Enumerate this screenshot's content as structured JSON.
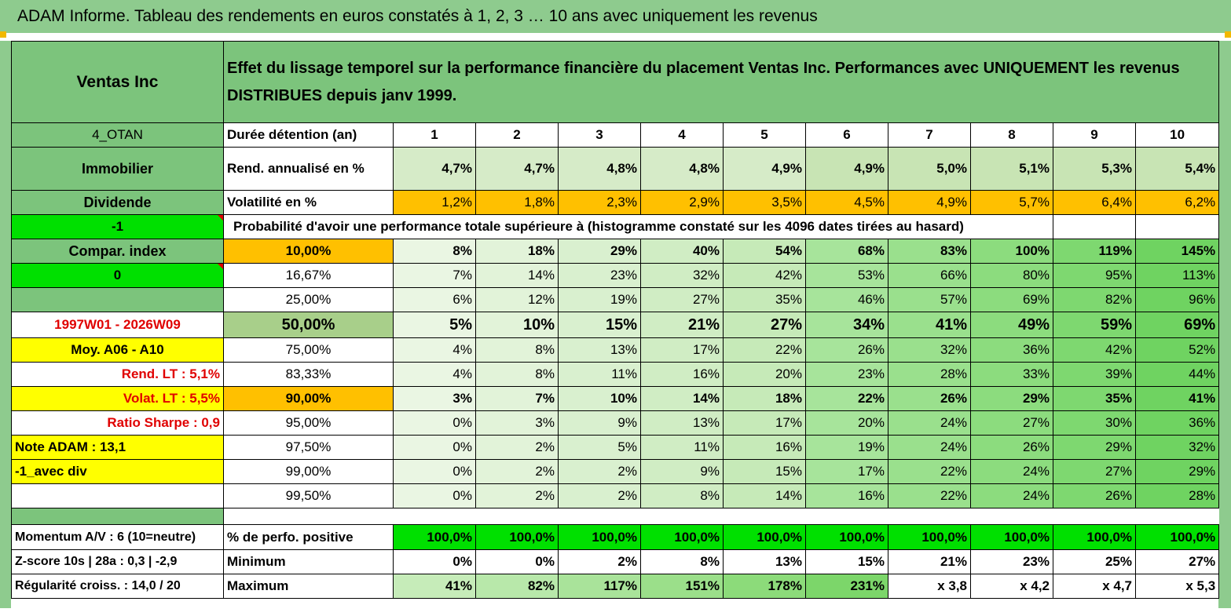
{
  "title": "ADAM Informe. Tableau des rendements en euros constatés à 1, 2, 3 … 10 ans avec uniquement les revenus",
  "header": {
    "company": "Ventas Inc",
    "description": "Effet du lissage temporel sur la performance financière du placement Ventas Inc. Performances avec UNIQUEMENT les revenus DISTRIBUES depuis janv 1999."
  },
  "left": {
    "code": "4_OTAN",
    "sector": "Immobilier",
    "type": "Dividende",
    "minus1": "-1",
    "compar": "Compar. index",
    "zero": "0",
    "period": "1997W01 - 2026W09",
    "moy": "Moy. A06 - A10",
    "rend_lt": "Rend. LT :   5,1%",
    "volat_lt": "Volat. LT :   5,5%",
    "sharpe": "Ratio Sharpe :    0,9",
    "note": "Note ADAM : 13,1",
    "avec_div": "-1_avec div"
  },
  "rows": {
    "duree_label": "Durée détention (an)",
    "years": [
      "1",
      "2",
      "3",
      "4",
      "5",
      "6",
      "7",
      "8",
      "9",
      "10"
    ],
    "rend_label": "Rend. annualisé en %",
    "rend": [
      "4,7%",
      "4,7%",
      "4,8%",
      "4,8%",
      "4,9%",
      "4,9%",
      "5,0%",
      "5,1%",
      "5,3%",
      "5,4%"
    ],
    "vol_label": "Volatilité en %",
    "vol": [
      "1,2%",
      "1,8%",
      "2,3%",
      "2,9%",
      "3,5%",
      "4,5%",
      "4,9%",
      "5,7%",
      "6,4%",
      "6,2%"
    ],
    "proba_label": "Probabilité d'avoir une performance totale supérieure à (histogramme constaté sur les 4096 dates tirées au hasard)"
  },
  "percentiles": [
    {
      "p": "10,00%",
      "v": [
        "8%",
        "18%",
        "29%",
        "40%",
        "54%",
        "68%",
        "83%",
        "100%",
        "119%",
        "145%"
      ]
    },
    {
      "p": "16,67%",
      "v": [
        "7%",
        "14%",
        "23%",
        "32%",
        "42%",
        "53%",
        "66%",
        "80%",
        "95%",
        "113%"
      ]
    },
    {
      "p": "25,00%",
      "v": [
        "6%",
        "12%",
        "19%",
        "27%",
        "35%",
        "46%",
        "57%",
        "69%",
        "82%",
        "96%"
      ]
    },
    {
      "p": "50,00%",
      "v": [
        "5%",
        "10%",
        "15%",
        "21%",
        "27%",
        "34%",
        "41%",
        "49%",
        "59%",
        "69%"
      ]
    },
    {
      "p": "75,00%",
      "v": [
        "4%",
        "8%",
        "13%",
        "17%",
        "22%",
        "26%",
        "32%",
        "36%",
        "42%",
        "52%"
      ]
    },
    {
      "p": "83,33%",
      "v": [
        "4%",
        "8%",
        "11%",
        "16%",
        "20%",
        "23%",
        "28%",
        "33%",
        "39%",
        "44%"
      ]
    },
    {
      "p": "90,00%",
      "v": [
        "3%",
        "7%",
        "10%",
        "14%",
        "18%",
        "22%",
        "26%",
        "29%",
        "35%",
        "41%"
      ]
    },
    {
      "p": "95,00%",
      "v": [
        "0%",
        "3%",
        "9%",
        "13%",
        "17%",
        "20%",
        "24%",
        "27%",
        "30%",
        "36%"
      ]
    },
    {
      "p": "97,50%",
      "v": [
        "0%",
        "2%",
        "5%",
        "11%",
        "16%",
        "19%",
        "24%",
        "26%",
        "29%",
        "32%"
      ]
    },
    {
      "p": "99,00%",
      "v": [
        "0%",
        "2%",
        "2%",
        "9%",
        "15%",
        "17%",
        "22%",
        "24%",
        "27%",
        "29%"
      ]
    },
    {
      "p": "99,50%",
      "v": [
        "0%",
        "2%",
        "2%",
        "8%",
        "14%",
        "16%",
        "22%",
        "24%",
        "26%",
        "28%"
      ]
    }
  ],
  "bottom": {
    "momentum": "Momentum A/V : 6 (10=neutre)",
    "zscore": "Z-score 10s | 28a : 0,3 | -2,9",
    "regularite": "Régularité croiss. : 14,0 / 20",
    "pos_label": "% de perfo. positive",
    "pos": [
      "100,0%",
      "100,0%",
      "100,0%",
      "100,0%",
      "100,0%",
      "100,0%",
      "100,0%",
      "100,0%",
      "100,0%",
      "100,0%"
    ],
    "min_label": "Minimum",
    "min": [
      "0%",
      "0%",
      "2%",
      "8%",
      "13%",
      "15%",
      "21%",
      "23%",
      "25%",
      "27%"
    ],
    "max_label": "Maximum",
    "max": [
      "41%",
      "82%",
      "117%",
      "151%",
      "178%",
      "231%",
      "x 3,8",
      "x 4,2",
      "x 4,7",
      "x 5,3"
    ]
  },
  "colors": {
    "header_green": "#7cc47c",
    "light_green": "#d6ebc8",
    "orange": "#ffc000",
    "bright_green": "#00e000",
    "yellow": "#ffff00",
    "red_text": "#e00000"
  }
}
